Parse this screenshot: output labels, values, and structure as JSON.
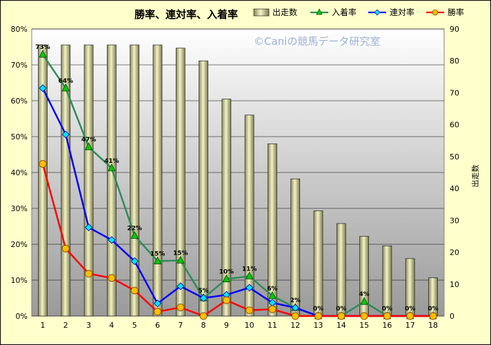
{
  "chart_data": {
    "type": "bar+line",
    "title": "勝率、連対率、入着率",
    "watermark": "©Caniの競馬データ研究室",
    "y2label": "出走数",
    "categories": [
      "1",
      "2",
      "3",
      "4",
      "5",
      "6",
      "7",
      "8",
      "9",
      "10",
      "11",
      "12",
      "13",
      "14",
      "15",
      "16",
      "17",
      "18"
    ],
    "ylim": [
      0,
      80
    ],
    "y_ticks": [
      "0%",
      "10%",
      "20%",
      "30%",
      "40%",
      "50%",
      "60%",
      "70%",
      "80%"
    ],
    "y2lim": [
      0,
      90
    ],
    "y2_ticks": [
      "0",
      "10",
      "20",
      "30",
      "40",
      "50",
      "60",
      "70",
      "80",
      "90"
    ],
    "bar_series": {
      "name": "出走数",
      "color": "#eeeeb4",
      "values": [
        85,
        85,
        85,
        85,
        85,
        85,
        84,
        80,
        68,
        63,
        54,
        43,
        33,
        29,
        25,
        22,
        18,
        12
      ]
    },
    "line_series": [
      {
        "name": "入着率",
        "color": "#2e8b57",
        "marker": "triangle",
        "values": [
          72.9,
          63.5,
          47.1,
          41.2,
          22.4,
          15.3,
          15.5,
          5.0,
          10.3,
          11.1,
          5.6,
          2.3,
          0,
          0,
          4.0,
          0,
          0,
          0
        ]
      },
      {
        "name": "連対率",
        "color": "#0000ff",
        "marker": "diamond",
        "values": [
          63.5,
          50.6,
          24.7,
          21.2,
          15.3,
          3.5,
          8.3,
          5.0,
          5.9,
          7.9,
          3.7,
          2.3,
          0,
          0,
          0,
          0,
          0,
          0
        ]
      },
      {
        "name": "勝率",
        "color": "#ff0000",
        "marker": "circle",
        "values": [
          42.4,
          18.8,
          11.8,
          10.6,
          7.1,
          1.2,
          2.4,
          0,
          4.4,
          1.6,
          1.9,
          0,
          0,
          0,
          0,
          0,
          0,
          0
        ]
      }
    ],
    "data_labels": [
      "73%",
      "64%",
      "47%",
      "41%",
      "22%",
      "15%",
      "15%",
      "5%",
      "10%",
      "11%",
      "6%",
      "2%",
      "0%",
      "0%",
      "4%",
      "0%",
      "0%",
      "0%"
    ],
    "grid": true,
    "legend_position": "top-right"
  }
}
